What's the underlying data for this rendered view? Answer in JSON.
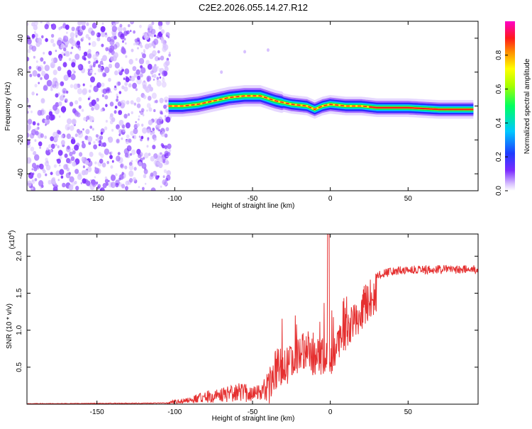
{
  "title": "C2E2.2026.055.14.27.R12",
  "chart_data": [
    {
      "type": "heatmap",
      "xlabel": "Height of straight line (km)",
      "ylabel": "Frequency (Hz)",
      "xlim": [
        -195,
        95
      ],
      "ylim": [
        -50,
        50
      ],
      "xticks": [
        -150,
        -100,
        -50,
        0,
        50
      ],
      "yticks": [
        -40,
        -20,
        0,
        20,
        40
      ],
      "colorbar": {
        "label": "Normalized spectral amplitude",
        "range": [
          0,
          1
        ],
        "ticks": [
          "0.0",
          "0.2",
          "0.4",
          "0.6",
          "0.8"
        ],
        "tick_values": [
          0,
          0.2,
          0.4,
          0.6,
          0.8
        ]
      },
      "ridge": {
        "description_points_x": [
          -104,
          -95,
          -85,
          -75,
          -65,
          -55,
          -45,
          -35,
          -25,
          -15,
          -10,
          -5,
          0,
          10,
          20,
          30,
          50,
          70,
          92
        ],
        "description_points_y": [
          0,
          0,
          1,
          3,
          5,
          6,
          6,
          3,
          1,
          0,
          -2,
          0,
          1,
          0,
          0,
          -1,
          -1,
          -2,
          -2
        ]
      },
      "noise_region_x": [
        -195,
        -103
      ]
    },
    {
      "type": "line",
      "xlabel": "Height of straight line (km)",
      "ylabel": "SNR (10 * v/v)",
      "multiplier": "(x10",
      "multiplier_exp": "4",
      "multiplier_close": ")",
      "xlim": [
        -195,
        95
      ],
      "ylim": [
        0,
        2.3
      ],
      "xticks": [
        -150,
        -100,
        -50,
        0,
        50
      ],
      "yticks": [
        0.5,
        1.0,
        1.5,
        2.0
      ],
      "ytick_labels": [
        "0.5",
        "1.0",
        "1.5",
        "2.0"
      ],
      "series": [
        {
          "name": "SNR",
          "color": "#e53030",
          "envelope_x": [
            -195,
            -105,
            -100,
            -90,
            -80,
            -70,
            -60,
            -50,
            -45,
            -40,
            -35,
            -30,
            -25,
            -20,
            -15,
            -10,
            -5,
            0,
            5,
            10,
            15,
            20,
            25,
            30,
            40,
            50,
            70,
            92
          ],
          "envelope_y": [
            0.01,
            0.02,
            0.06,
            0.1,
            0.18,
            0.22,
            0.28,
            0.3,
            0.25,
            0.45,
            0.75,
            0.8,
            0.85,
            0.95,
            1.0,
            0.9,
            0.95,
            0.85,
            1.1,
            1.25,
            1.4,
            1.55,
            1.7,
            1.8,
            1.86,
            1.88,
            1.88,
            1.88
          ]
        }
      ]
    }
  ],
  "colors": {
    "accent": "#e53030",
    "noise": "#7b2bff"
  }
}
